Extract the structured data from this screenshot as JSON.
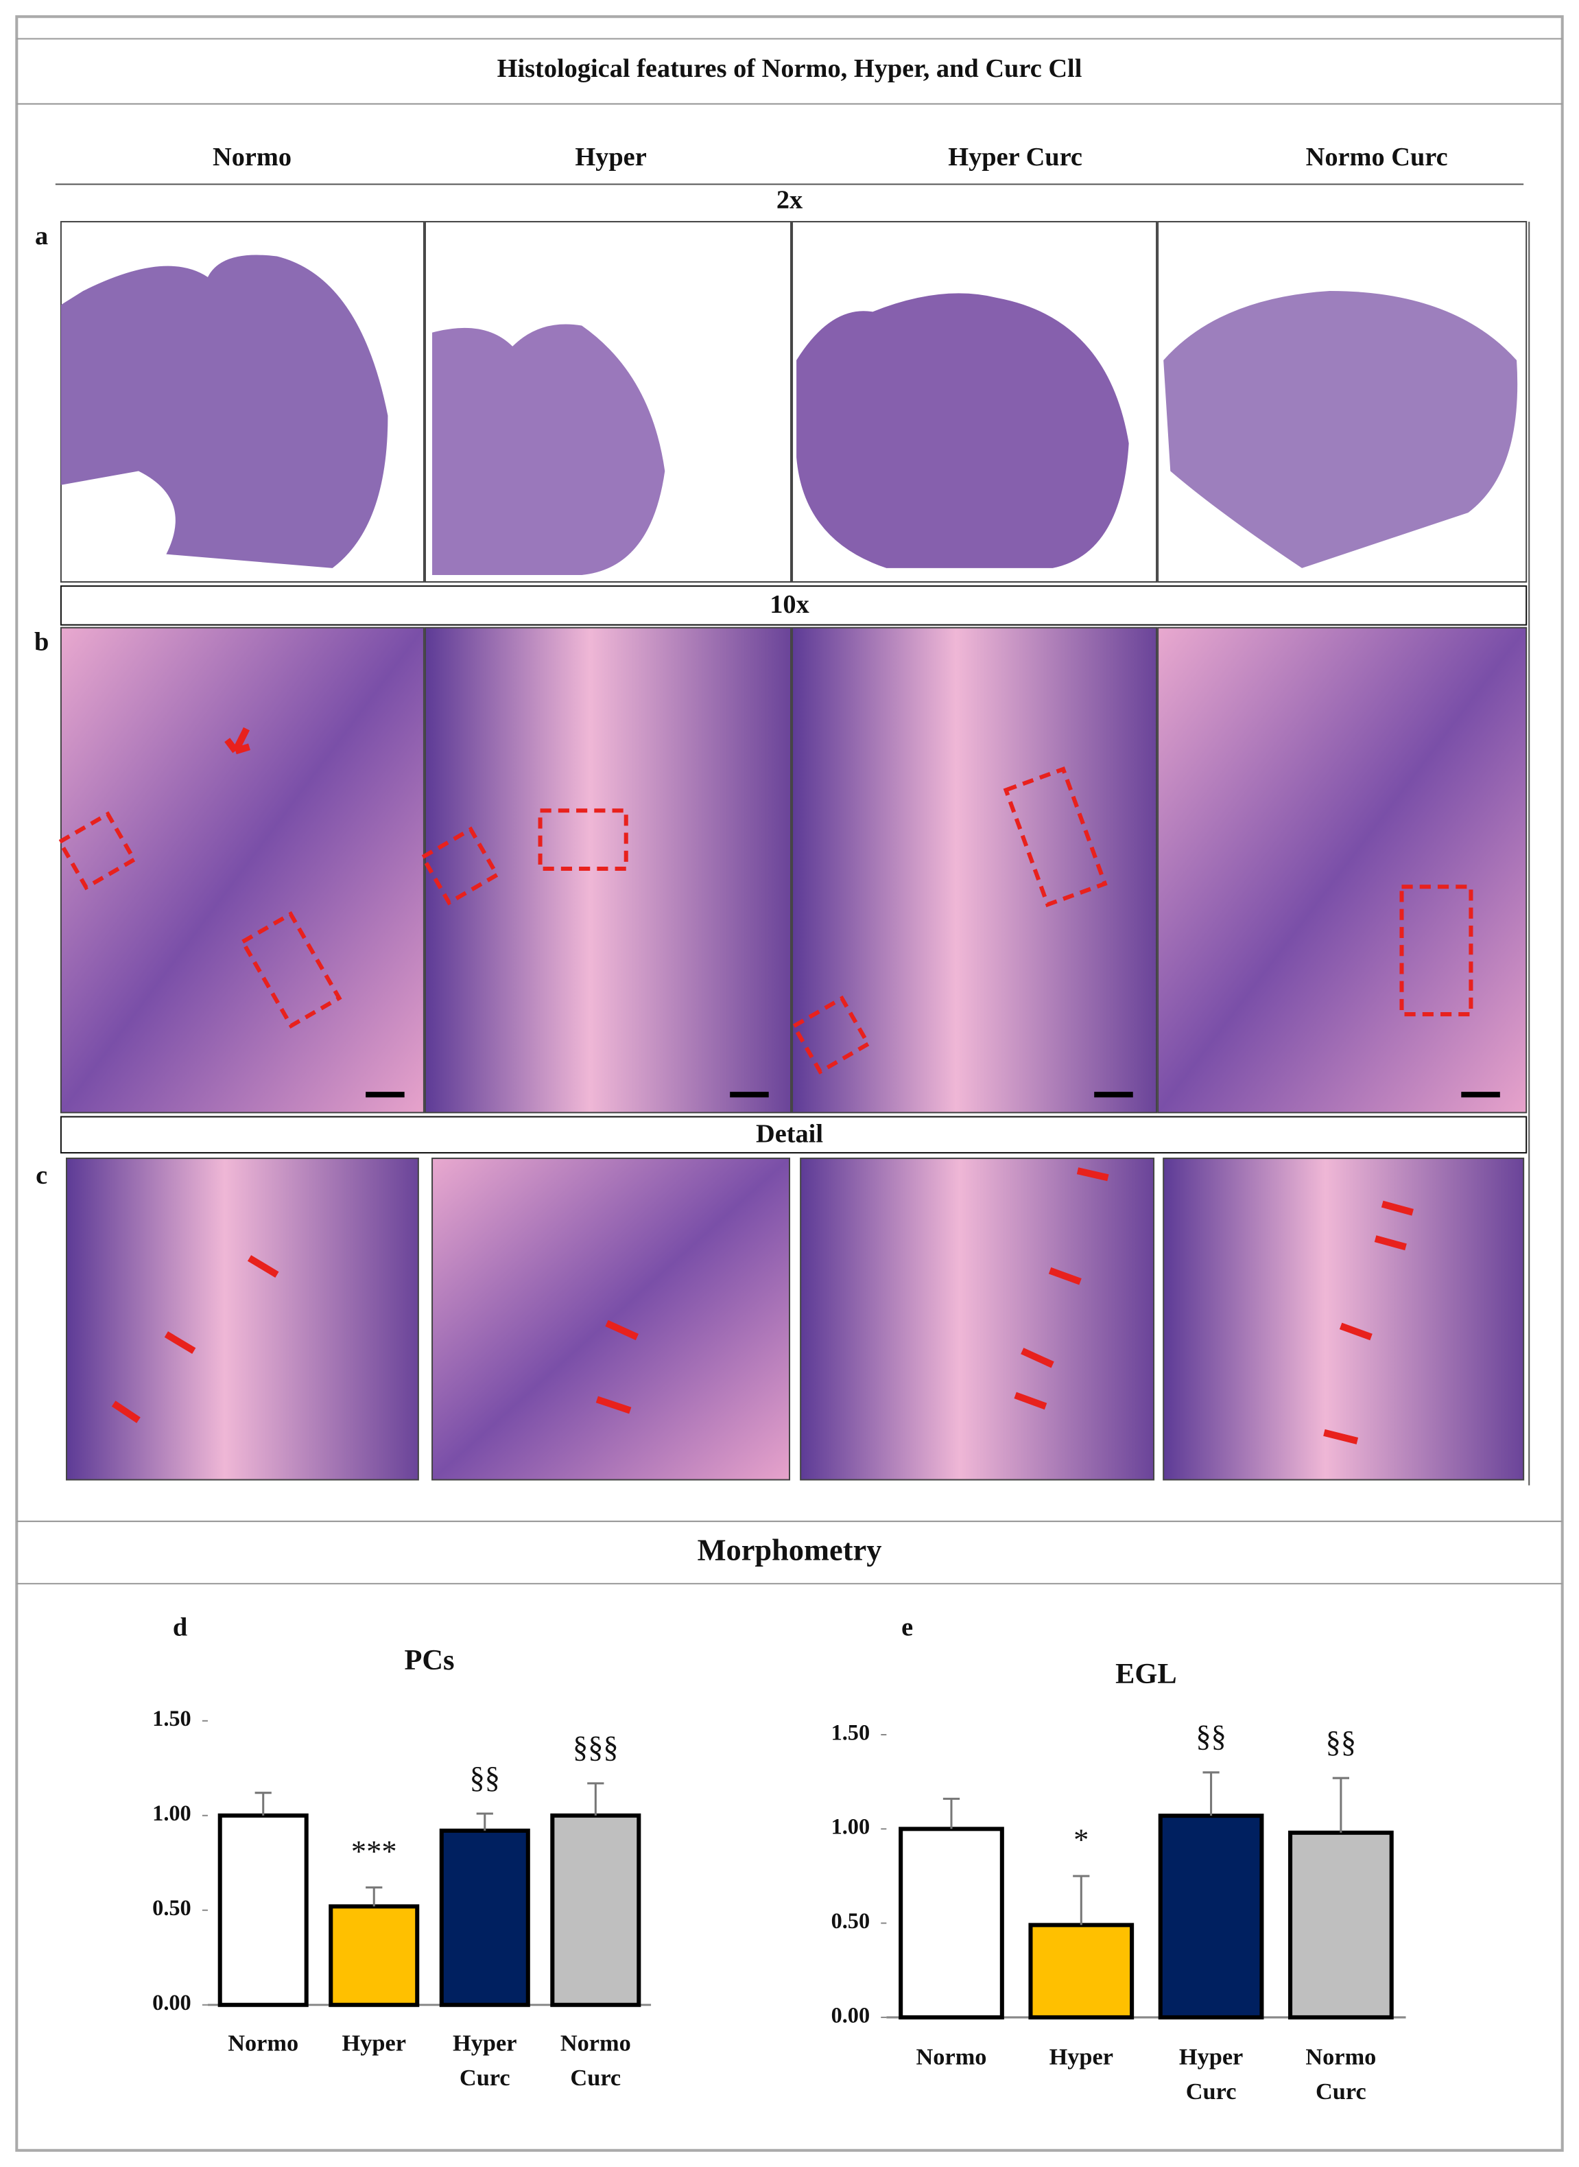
{
  "title": "Histological  features of Normo, Hyper, and Curc Cll",
  "columns": [
    "Normo",
    "Hyper",
    "Hyper Curc",
    "Normo Curc"
  ],
  "rows": [
    "2x",
    "10x",
    "Detail"
  ],
  "panel_labels": [
    "a",
    "b",
    "c",
    "d",
    "e"
  ],
  "section_title": "Morphometry",
  "chart_data": [
    {
      "type": "bar",
      "title": "PCs",
      "categories": [
        "Normo",
        "Hyper",
        "Hyper Curc",
        "Normo Curc"
      ],
      "values": [
        1.0,
        0.52,
        0.92,
        1.0
      ],
      "errors": [
        0.12,
        0.1,
        0.09,
        0.17
      ],
      "colors": [
        "#ffffff",
        "#ffc000",
        "#002060",
        "#bfbfbf"
      ],
      "significance": [
        null,
        "***",
        "§§",
        "§§§"
      ],
      "ylim": [
        0,
        1.5
      ],
      "yticks": [
        {
          "value": 0,
          "label": "0.00"
        },
        {
          "value": 0.5,
          "label": "0.50"
        },
        {
          "value": 1,
          "label": "1.00"
        },
        {
          "value": 1.5,
          "label": "1.50"
        }
      ]
    },
    {
      "type": "bar",
      "title": "EGL",
      "categories": [
        "Normo",
        "Hyper",
        "Hyper Curc",
        "Normo Curc"
      ],
      "values": [
        1.0,
        0.49,
        1.07,
        0.98
      ],
      "errors": [
        0.16,
        0.26,
        0.23,
        0.29
      ],
      "colors": [
        "#ffffff",
        "#ffc000",
        "#002060",
        "#bfbfbf"
      ],
      "significance": [
        null,
        "*",
        "§§",
        "§§"
      ],
      "ylim": [
        0,
        1.5
      ],
      "yticks": [
        {
          "value": 0,
          "label": "0.00"
        },
        {
          "value": 0.5,
          "label": "0.50"
        },
        {
          "value": 1,
          "label": "1.00"
        },
        {
          "value": 1.5,
          "label": "1.50"
        }
      ]
    }
  ]
}
